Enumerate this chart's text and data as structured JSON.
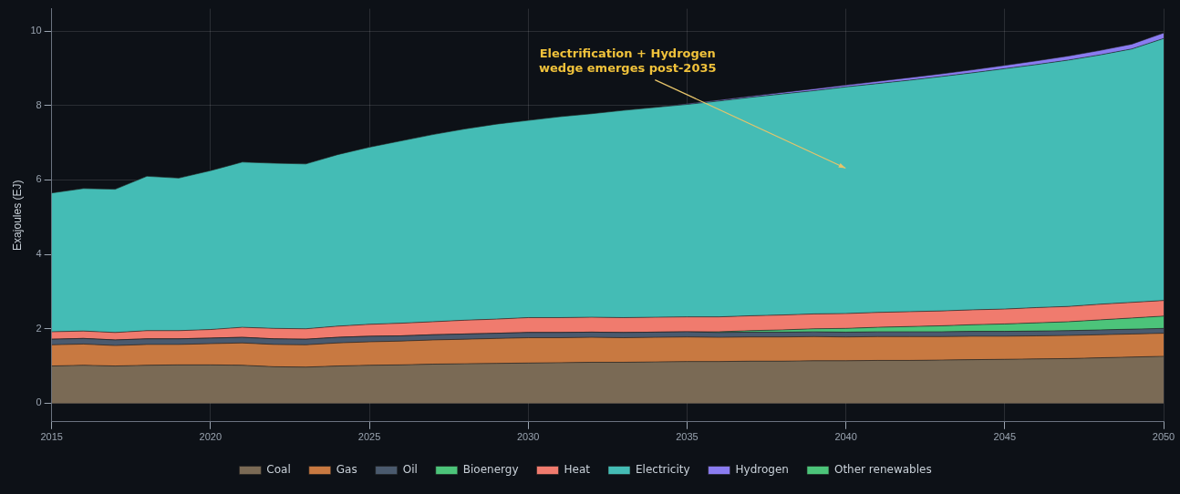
{
  "chart_data": {
    "type": "area",
    "stacked": true,
    "ylabel": "Exajoules (EJ)",
    "x": [
      2015,
      2016,
      2017,
      2018,
      2019,
      2020,
      2021,
      2022,
      2023,
      2024,
      2025,
      2026,
      2027,
      2028,
      2029,
      2030,
      2031,
      2032,
      2033,
      2034,
      2035,
      2036,
      2037,
      2038,
      2039,
      2040,
      2041,
      2042,
      2043,
      2044,
      2045,
      2046,
      2047,
      2048,
      2049,
      2050
    ],
    "series": [
      {
        "name": "Coal",
        "color": "#7a6a55",
        "values": [
          1.0,
          1.02,
          1.0,
          1.02,
          1.03,
          1.03,
          1.02,
          0.98,
          0.97,
          1.0,
          1.02,
          1.03,
          1.05,
          1.06,
          1.07,
          1.08,
          1.09,
          1.1,
          1.1,
          1.11,
          1.12,
          1.12,
          1.13,
          1.13,
          1.14,
          1.14,
          1.15,
          1.15,
          1.16,
          1.17,
          1.18,
          1.19,
          1.2,
          1.22,
          1.24,
          1.26
        ]
      },
      {
        "name": "Gas",
        "color": "#c87941",
        "values": [
          0.57,
          0.57,
          0.55,
          0.56,
          0.55,
          0.57,
          0.6,
          0.6,
          0.6,
          0.62,
          0.63,
          0.64,
          0.65,
          0.66,
          0.67,
          0.68,
          0.67,
          0.67,
          0.66,
          0.66,
          0.66,
          0.65,
          0.65,
          0.65,
          0.65,
          0.64,
          0.64,
          0.64,
          0.63,
          0.63,
          0.62,
          0.62,
          0.62,
          0.62,
          0.62,
          0.62
        ]
      },
      {
        "name": "Oil",
        "color": "#4a5a6e",
        "values": [
          0.15,
          0.15,
          0.15,
          0.15,
          0.15,
          0.15,
          0.15,
          0.15,
          0.15,
          0.15,
          0.15,
          0.14,
          0.14,
          0.14,
          0.14,
          0.14,
          0.14,
          0.14,
          0.14,
          0.14,
          0.14,
          0.13,
          0.13,
          0.13,
          0.13,
          0.13,
          0.13,
          0.13,
          0.13,
          0.13,
          0.13,
          0.13,
          0.13,
          0.13,
          0.13,
          0.13
        ]
      },
      {
        "name": "Bioenergy",
        "color": "#4cc47a",
        "values": [
          0,
          0,
          0,
          0,
          0,
          0,
          0,
          0,
          0,
          0,
          0,
          0,
          0,
          0,
          0,
          0,
          0,
          0,
          0,
          0,
          0,
          0.02,
          0.04,
          0.06,
          0.08,
          0.1,
          0.12,
          0.14,
          0.16,
          0.18,
          0.2,
          0.22,
          0.24,
          0.27,
          0.3,
          0.33
        ]
      },
      {
        "name": "Heat",
        "color": "#f07b6e",
        "values": [
          0.2,
          0.2,
          0.2,
          0.22,
          0.22,
          0.23,
          0.27,
          0.28,
          0.28,
          0.3,
          0.32,
          0.34,
          0.35,
          0.37,
          0.38,
          0.4,
          0.4,
          0.4,
          0.4,
          0.4,
          0.4,
          0.4,
          0.4,
          0.4,
          0.4,
          0.4,
          0.4,
          0.4,
          0.4,
          0.4,
          0.4,
          0.41,
          0.41,
          0.42,
          0.42,
          0.42
        ]
      },
      {
        "name": "Electricity",
        "color": "#44bcb5",
        "values": [
          3.73,
          3.83,
          3.85,
          4.15,
          4.1,
          4.27,
          4.44,
          4.44,
          4.43,
          4.61,
          4.76,
          4.9,
          5.03,
          5.14,
          5.24,
          5.3,
          5.4,
          5.47,
          5.57,
          5.64,
          5.71,
          5.8,
          5.87,
          5.94,
          6.0,
          6.09,
          6.15,
          6.22,
          6.3,
          6.37,
          6.46,
          6.53,
          6.62,
          6.7,
          6.81,
          7.04
        ]
      },
      {
        "name": "Hydrogen",
        "color": "#8a7cf0",
        "values": [
          0,
          0,
          0,
          0,
          0,
          0,
          0,
          0,
          0,
          0,
          0,
          0,
          0,
          0,
          0,
          0,
          0,
          0,
          0,
          0,
          0.02,
          0.03,
          0.03,
          0.04,
          0.05,
          0.05,
          0.06,
          0.07,
          0.07,
          0.08,
          0.09,
          0.1,
          0.11,
          0.12,
          0.13,
          0.15
        ]
      },
      {
        "name": "Other renewables",
        "color": "#4cc47a",
        "values": [
          null,
          null,
          null,
          null,
          null,
          null,
          null,
          null,
          null,
          null,
          null,
          null,
          null,
          null,
          null,
          null,
          null,
          null,
          null,
          null,
          null,
          null,
          null,
          null,
          null,
          null,
          null,
          null,
          null,
          null,
          null,
          null,
          null,
          null,
          null,
          null
        ]
      }
    ],
    "xlim": [
      2015,
      2050
    ],
    "xticks": [
      2015,
      2020,
      2025,
      2030,
      2035,
      2040,
      2045,
      2050
    ],
    "ylim": [
      -0.5,
      10.6
    ],
    "yticks": [
      0,
      2,
      4,
      6,
      8,
      10
    ],
    "grid": true,
    "legend": "bottom",
    "annotations": [
      "Electrification + Hydrogen\nwedge emerges post-2035"
    ]
  }
}
